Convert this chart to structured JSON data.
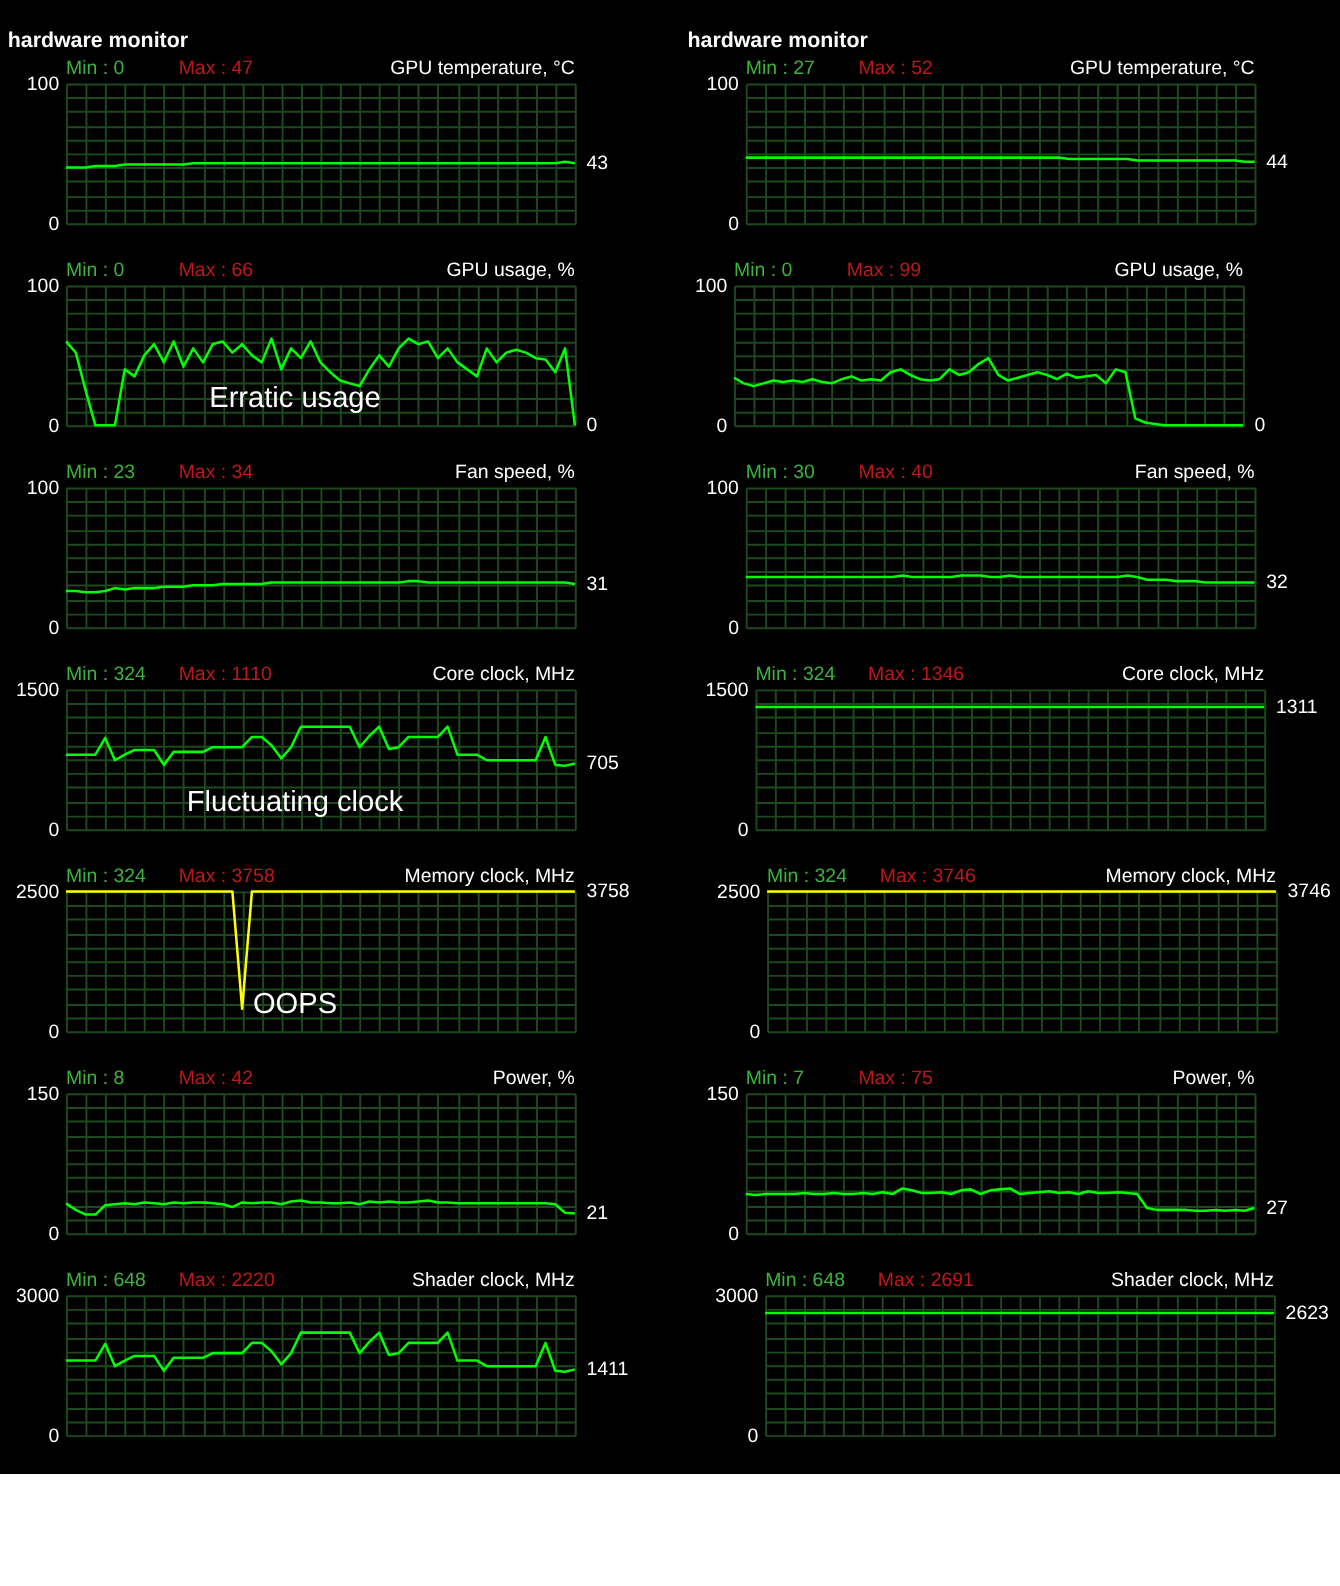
{
  "chart_data": [
    {
      "type": "line",
      "subtitle": "hardware monitor",
      "title": "GPU temperature, °C",
      "categories": [
        null,
        null,
        null,
        null,
        null,
        null,
        null,
        null,
        null,
        null,
        null,
        null,
        null,
        null,
        null,
        null,
        null,
        null,
        null,
        null,
        null,
        null,
        null,
        null,
        null,
        null,
        null,
        null,
        null,
        null,
        null,
        null,
        null,
        null,
        null,
        null,
        null,
        null,
        null,
        null,
        null,
        null,
        null,
        null,
        null,
        null,
        null,
        null,
        null,
        null,
        null,
        null,
        null
      ],
      "ylim": [
        0,
        100
      ],
      "yticks": [
        0,
        {
          "value": 10,
          "label": null
        },
        {
          "value": 20,
          "label": null
        },
        {
          "value": 30,
          "label": null
        },
        {
          "value": 40,
          "label": null
        },
        {
          "value": 50,
          "label": null
        },
        {
          "value": 60,
          "label": null
        },
        {
          "value": 70,
          "label": null
        },
        {
          "value": 80,
          "label": null
        },
        {
          "value": 90,
          "label": null
        },
        100
      ],
      "grid": true,
      "annotations": [
        "Min : 0",
        "Max : 47",
        "43"
      ],
      "series": [
        {
          "color": "#00ff00",
          "values": [
            40,
            40,
            40,
            41,
            41,
            41,
            42,
            42,
            42,
            42,
            42,
            42,
            42,
            43,
            43,
            43,
            43,
            43,
            43,
            43,
            43,
            43,
            43,
            43,
            43,
            43,
            43,
            43,
            43,
            43,
            43,
            43,
            43,
            43,
            43,
            43,
            43,
            43,
            43,
            43,
            43,
            43,
            43,
            43,
            43,
            43,
            43,
            43,
            43,
            43,
            43,
            44,
            43
          ]
        }
      ]
    },
    {
      "type": "line",
      "subtitle": "hardware monitor",
      "title": "GPU temperature, °C",
      "categories": [
        null,
        null,
        null,
        null,
        null,
        null,
        null,
        null,
        null,
        null,
        null,
        null,
        null,
        null,
        null,
        null,
        null,
        null,
        null,
        null,
        null,
        null,
        null,
        null,
        null,
        null,
        null,
        null,
        null,
        null,
        null,
        null,
        null,
        null,
        null,
        null,
        null,
        null,
        null,
        null,
        null,
        null,
        null,
        null,
        null,
        null,
        null,
        null,
        null,
        null,
        null,
        null,
        null
      ],
      "ylim": [
        0,
        100
      ],
      "yticks": [
        0,
        {
          "value": 10,
          "label": null
        },
        {
          "value": 20,
          "label": null
        },
        {
          "value": 30,
          "label": null
        },
        {
          "value": 40,
          "label": null
        },
        {
          "value": 50,
          "label": null
        },
        {
          "value": 60,
          "label": null
        },
        {
          "value": 70,
          "label": null
        },
        {
          "value": 80,
          "label": null
        },
        {
          "value": 90,
          "label": null
        },
        100
      ],
      "grid": true,
      "annotations": [
        "Min : 27",
        "Max : 52",
        "44"
      ],
      "series": [
        {
          "color": "#00ff00",
          "values": [
            47,
            47,
            47,
            47,
            47,
            47,
            47,
            47,
            47,
            47,
            47,
            47,
            47,
            47,
            47,
            47,
            47,
            47,
            47,
            47,
            47,
            47,
            47,
            47,
            47,
            47,
            47,
            47,
            47,
            47,
            47,
            47,
            47,
            46,
            46,
            46,
            46,
            46,
            46,
            46,
            45,
            45,
            45,
            45,
            45,
            45,
            45,
            45,
            45,
            45,
            45,
            44,
            44
          ]
        }
      ]
    },
    {
      "type": "line",
      "title": "GPU usage, %",
      "categories": [
        null,
        null,
        null,
        null,
        null,
        null,
        null,
        null,
        null,
        null,
        null,
        null,
        null,
        null,
        null,
        null,
        null,
        null,
        null,
        null,
        null,
        null,
        null,
        null,
        null,
        null,
        null,
        null,
        null,
        null,
        null,
        null,
        null,
        null,
        null,
        null,
        null,
        null,
        null,
        null,
        null,
        null,
        null,
        null,
        null,
        null,
        null,
        null,
        null,
        null,
        null,
        null,
        null
      ],
      "ylim": [
        0,
        100
      ],
      "yticks": [
        0,
        {
          "value": 10,
          "label": null
        },
        {
          "value": 20,
          "label": null
        },
        {
          "value": 30,
          "label": null
        },
        {
          "value": 40,
          "label": null
        },
        {
          "value": 50,
          "label": null
        },
        {
          "value": 60,
          "label": null
        },
        {
          "value": 70,
          "label": null
        },
        {
          "value": 80,
          "label": null
        },
        {
          "value": 90,
          "label": null
        },
        100
      ],
      "grid": true,
      "annotations": [
        "Min : 0",
        "Max : 66",
        "0",
        "Erratic usage"
      ],
      "series": [
        {
          "color": "#00ff00",
          "values": [
            60,
            52,
            25,
            0,
            0,
            0,
            40,
            35,
            50,
            58,
            45,
            60,
            42,
            55,
            45,
            58,
            60,
            52,
            58,
            50,
            45,
            62,
            40,
            55,
            48,
            60,
            45,
            38,
            32,
            30,
            28,
            40,
            50,
            42,
            55,
            62,
            58,
            60,
            48,
            55,
            45,
            40,
            35,
            55,
            45,
            52,
            54,
            52,
            48,
            47,
            38,
            55,
            0
          ]
        }
      ]
    },
    {
      "type": "line",
      "title": "GPU usage, %",
      "categories": [
        null,
        null,
        null,
        null,
        null,
        null,
        null,
        null,
        null,
        null,
        null,
        null,
        null,
        null,
        null,
        null,
        null,
        null,
        null,
        null,
        null,
        null,
        null,
        null,
        null,
        null,
        null,
        null,
        null,
        null,
        null,
        null,
        null,
        null,
        null,
        null,
        null,
        null,
        null,
        null,
        null,
        null,
        null,
        null,
        null,
        null,
        null,
        null,
        null,
        null,
        null,
        null,
        null
      ],
      "ylim": [
        0,
        100
      ],
      "yticks": [
        0,
        {
          "value": 10,
          "label": null
        },
        {
          "value": 20,
          "label": null
        },
        {
          "value": 30,
          "label": null
        },
        {
          "value": 40,
          "label": null
        },
        {
          "value": 50,
          "label": null
        },
        {
          "value": 60,
          "label": null
        },
        {
          "value": 70,
          "label": null
        },
        {
          "value": 80,
          "label": null
        },
        {
          "value": 90,
          "label": null
        },
        100
      ],
      "grid": true,
      "annotations": [
        "Min : 0",
        "Max : 99",
        "0"
      ],
      "series": [
        {
          "color": "#00ff00",
          "values": [
            34,
            30,
            28,
            30,
            32,
            31,
            32,
            31,
            33,
            31,
            30,
            33,
            35,
            32,
            33,
            32,
            38,
            40,
            36,
            33,
            32,
            33,
            40,
            36,
            38,
            44,
            48,
            36,
            32,
            34,
            36,
            38,
            36,
            33,
            37,
            34,
            35,
            36,
            30,
            40,
            38,
            5,
            2,
            1,
            0,
            0,
            0,
            0,
            0,
            0,
            0,
            0,
            0
          ]
        }
      ]
    },
    {
      "type": "line",
      "title": "Fan speed, %",
      "categories": [
        null,
        null,
        null,
        null,
        null,
        null,
        null,
        null,
        null,
        null,
        null,
        null,
        null,
        null,
        null,
        null,
        null,
        null,
        null,
        null,
        null,
        null,
        null,
        null,
        null,
        null,
        null,
        null,
        null,
        null,
        null,
        null,
        null,
        null,
        null,
        null,
        null,
        null,
        null,
        null,
        null,
        null,
        null,
        null,
        null,
        null,
        null,
        null,
        null,
        null,
        null,
        null,
        null
      ],
      "ylim": [
        0,
        100
      ],
      "yticks": [
        0,
        {
          "value": 10,
          "label": null
        },
        {
          "value": 20,
          "label": null
        },
        {
          "value": 30,
          "label": null
        },
        {
          "value": 40,
          "label": null
        },
        {
          "value": 50,
          "label": null
        },
        {
          "value": 60,
          "label": null
        },
        {
          "value": 70,
          "label": null
        },
        {
          "value": 80,
          "label": null
        },
        {
          "value": 90,
          "label": null
        },
        100
      ],
      "grid": true,
      "annotations": [
        "Min : 23",
        "Max : 34",
        "31"
      ],
      "series": [
        {
          "color": "#00ff00",
          "values": [
            26,
            26,
            25,
            25,
            26,
            28,
            27,
            28,
            28,
            28,
            29,
            29,
            29,
            30,
            30,
            30,
            31,
            31,
            31,
            31,
            31,
            32,
            32,
            32,
            32,
            32,
            32,
            32,
            32,
            32,
            32,
            32,
            32,
            32,
            32,
            33,
            33,
            32,
            32,
            32,
            32,
            32,
            32,
            32,
            32,
            32,
            32,
            32,
            32,
            32,
            32,
            32,
            31
          ]
        }
      ]
    },
    {
      "type": "line",
      "title": "Fan speed, %",
      "categories": [
        null,
        null,
        null,
        null,
        null,
        null,
        null,
        null,
        null,
        null,
        null,
        null,
        null,
        null,
        null,
        null,
        null,
        null,
        null,
        null,
        null,
        null,
        null,
        null,
        null,
        null,
        null,
        null,
        null,
        null,
        null,
        null,
        null,
        null,
        null,
        null,
        null,
        null,
        null,
        null,
        null,
        null,
        null,
        null,
        null,
        null,
        null,
        null,
        null,
        null,
        null,
        null,
        null
      ],
      "ylim": [
        0,
        100
      ],
      "yticks": [
        0,
        {
          "value": 10,
          "label": null
        },
        {
          "value": 20,
          "label": null
        },
        {
          "value": 30,
          "label": null
        },
        {
          "value": 40,
          "label": null
        },
        {
          "value": 50,
          "label": null
        },
        {
          "value": 60,
          "label": null
        },
        {
          "value": 70,
          "label": null
        },
        {
          "value": 80,
          "label": null
        },
        {
          "value": 90,
          "label": null
        },
        100
      ],
      "grid": true,
      "annotations": [
        "Min : 30",
        "Max : 40",
        "32"
      ],
      "series": [
        {
          "color": "#00ff00",
          "values": [
            36,
            36,
            36,
            36,
            36,
            36,
            36,
            36,
            36,
            36,
            36,
            36,
            36,
            36,
            36,
            36,
            37,
            36,
            36,
            36,
            36,
            36,
            37,
            37,
            37,
            36,
            36,
            37,
            36,
            36,
            36,
            36,
            36,
            36,
            36,
            36,
            36,
            36,
            36,
            37,
            36,
            34,
            34,
            34,
            33,
            33,
            33,
            32,
            32,
            32,
            32,
            32,
            32
          ]
        }
      ]
    },
    {
      "type": "line",
      "title": "Core clock, MHz",
      "categories": [
        null,
        null,
        null,
        null,
        null,
        null,
        null,
        null,
        null,
        null,
        null,
        null,
        null,
        null,
        null,
        null,
        null,
        null,
        null,
        null,
        null,
        null,
        null,
        null,
        null,
        null,
        null,
        null,
        null,
        null,
        null,
        null,
        null,
        null,
        null,
        null,
        null,
        null,
        null,
        null,
        null,
        null,
        null,
        null,
        null,
        null,
        null,
        null,
        null,
        null,
        null,
        null,
        null
      ],
      "ylim": [
        0,
        1500
      ],
      "yticks": [
        0,
        {
          "value": 150,
          "label": null
        },
        {
          "value": 300,
          "label": null
        },
        {
          "value": 450,
          "label": null
        },
        {
          "value": 600,
          "label": null
        },
        {
          "value": 750,
          "label": null
        },
        {
          "value": 900,
          "label": null
        },
        {
          "value": 1050,
          "label": null
        },
        {
          "value": 1200,
          "label": null
        },
        {
          "value": 1350,
          "label": null
        },
        1500
      ],
      "grid": true,
      "annotations": [
        "Min : 324",
        "Max : 1110",
        "705",
        "Fluctuating clock"
      ],
      "series": [
        {
          "color": "#00ff00",
          "values": [
            800,
            800,
            800,
            800,
            980,
            740,
            800,
            850,
            850,
            850,
            690,
            830,
            830,
            830,
            830,
            880,
            880,
            880,
            880,
            990,
            990,
            900,
            760,
            880,
            1100,
            1100,
            1100,
            1100,
            1100,
            1100,
            880,
            1000,
            1100,
            860,
            880,
            990,
            990,
            990,
            990,
            1100,
            800,
            800,
            800,
            740,
            740,
            740,
            740,
            740,
            740,
            990,
            690,
            680,
            705
          ]
        }
      ]
    },
    {
      "type": "line",
      "title": "Core clock, MHz",
      "categories": [
        null,
        null,
        null,
        null,
        null,
        null,
        null,
        null,
        null,
        null,
        null,
        null,
        null,
        null,
        null,
        null,
        null,
        null,
        null,
        null,
        null,
        null,
        null,
        null,
        null,
        null,
        null,
        null,
        null,
        null,
        null,
        null,
        null,
        null,
        null,
        null,
        null,
        null,
        null,
        null,
        null,
        null,
        null,
        null,
        null,
        null,
        null,
        null,
        null,
        null,
        null,
        null,
        null
      ],
      "ylim": [
        0,
        1500
      ],
      "yticks": [
        0,
        {
          "value": 150,
          "label": null
        },
        {
          "value": 300,
          "label": null
        },
        {
          "value": 450,
          "label": null
        },
        {
          "value": 600,
          "label": null
        },
        {
          "value": 750,
          "label": null
        },
        {
          "value": 900,
          "label": null
        },
        {
          "value": 1050,
          "label": null
        },
        {
          "value": 1200,
          "label": null
        },
        {
          "value": 1350,
          "label": null
        },
        1500
      ],
      "grid": true,
      "annotations": [
        "Min : 324",
        "Max : 1346",
        "1311"
      ],
      "series": [
        {
          "color": "#00ff00",
          "values": [
            1311,
            1311,
            1311,
            1311,
            1311,
            1311,
            1311,
            1311,
            1311,
            1311,
            1311,
            1311,
            1311,
            1311,
            1311,
            1311,
            1311,
            1311,
            1311,
            1311,
            1311,
            1311,
            1311,
            1311,
            1311,
            1311,
            1311,
            1311,
            1311,
            1311,
            1311,
            1311,
            1311,
            1311,
            1311,
            1311,
            1311,
            1311,
            1311,
            1311,
            1311,
            1311,
            1311,
            1311,
            1311,
            1311,
            1311,
            1311,
            1311,
            1311,
            1311,
            1311,
            1311
          ]
        }
      ]
    },
    {
      "type": "line",
      "title": "Memory clock, MHz",
      "categories": [
        null,
        null,
        null,
        null,
        null,
        null,
        null,
        null,
        null,
        null,
        null,
        null,
        null,
        null,
        null,
        null,
        null,
        null,
        null,
        null,
        null,
        null,
        null,
        null,
        null,
        null,
        null,
        null,
        null,
        null,
        null,
        null,
        null,
        null,
        null,
        null,
        null,
        null,
        null,
        null,
        null,
        null,
        null,
        null,
        null,
        null,
        null,
        null,
        null,
        null,
        null,
        null,
        null
      ],
      "ylim": [
        0,
        2500
      ],
      "yticks": [
        0,
        {
          "value": 250,
          "label": null
        },
        {
          "value": 500,
          "label": null
        },
        {
          "value": 750,
          "label": null
        },
        {
          "value": 1000,
          "label": null
        },
        {
          "value": 1250,
          "label": null
        },
        {
          "value": 1500,
          "label": null
        },
        {
          "value": 1750,
          "label": null
        },
        {
          "value": 2000,
          "label": null
        },
        {
          "value": 2250,
          "label": null
        },
        2500
      ],
      "grid": true,
      "annotations": [
        "Min : 324",
        "Max : 3758",
        "3758",
        "OOPS"
      ],
      "series": [
        {
          "color": "#ffff00",
          "values": [
            2500,
            2500,
            2500,
            2500,
            2500,
            2500,
            2500,
            2500,
            2500,
            2500,
            2500,
            2500,
            2500,
            2500,
            2500,
            2500,
            2500,
            2500,
            400,
            2500,
            2500,
            2500,
            2500,
            2500,
            2500,
            2500,
            2500,
            2500,
            2500,
            2500,
            2500,
            2500,
            2500,
            2500,
            2500,
            2500,
            2500,
            2500,
            2500,
            2500,
            2500,
            2500,
            2500,
            2500,
            2500,
            2500,
            2500,
            2500,
            2500,
            2500,
            2500,
            2500,
            2500
          ]
        }
      ]
    },
    {
      "type": "line",
      "title": "Memory clock, MHz",
      "categories": [
        null,
        null,
        null,
        null,
        null,
        null,
        null,
        null,
        null,
        null,
        null,
        null,
        null,
        null,
        null,
        null,
        null,
        null,
        null,
        null,
        null,
        null,
        null,
        null,
        null,
        null,
        null,
        null,
        null,
        null,
        null,
        null,
        null,
        null,
        null,
        null,
        null,
        null,
        null,
        null,
        null,
        null,
        null,
        null,
        null,
        null,
        null,
        null,
        null,
        null,
        null,
        null,
        null
      ],
      "ylim": [
        0,
        2500
      ],
      "yticks": [
        0,
        {
          "value": 250,
          "label": null
        },
        {
          "value": 500,
          "label": null
        },
        {
          "value": 750,
          "label": null
        },
        {
          "value": 1000,
          "label": null
        },
        {
          "value": 1250,
          "label": null
        },
        {
          "value": 1500,
          "label": null
        },
        {
          "value": 1750,
          "label": null
        },
        {
          "value": 2000,
          "label": null
        },
        {
          "value": 2250,
          "label": null
        },
        2500
      ],
      "grid": true,
      "annotations": [
        "Min : 324",
        "Max : 3746",
        "3746"
      ],
      "series": [
        {
          "color": "#ffff00",
          "values": [
            2500,
            2500,
            2500,
            2500,
            2500,
            2500,
            2500,
            2500,
            2500,
            2500,
            2500,
            2500,
            2500,
            2500,
            2500,
            2500,
            2500,
            2500,
            2500,
            2500,
            2500,
            2500,
            2500,
            2500,
            2500,
            2500,
            2500,
            2500,
            2500,
            2500,
            2500,
            2500,
            2500,
            2500,
            2500,
            2500,
            2500,
            2500,
            2500,
            2500,
            2500,
            2500,
            2500,
            2500,
            2500,
            2500,
            2500,
            2500,
            2500,
            2500,
            2500,
            2500,
            2500
          ]
        }
      ]
    },
    {
      "type": "line",
      "title": "Power, %",
      "categories": [
        null,
        null,
        null,
        null,
        null,
        null,
        null,
        null,
        null,
        null,
        null,
        null,
        null,
        null,
        null,
        null,
        null,
        null,
        null,
        null,
        null,
        null,
        null,
        null,
        null,
        null,
        null,
        null,
        null,
        null,
        null,
        null,
        null,
        null,
        null,
        null,
        null,
        null,
        null,
        null,
        null,
        null,
        null,
        null,
        null,
        null,
        null,
        null,
        null,
        null,
        null,
        null,
        null
      ],
      "ylim": [
        0,
        150
      ],
      "yticks": [
        0,
        {
          "value": 15,
          "label": null
        },
        {
          "value": 30,
          "label": null
        },
        {
          "value": 45,
          "label": null
        },
        {
          "value": 60,
          "label": null
        },
        {
          "value": 75,
          "label": null
        },
        {
          "value": 90,
          "label": null
        },
        {
          "value": 105,
          "label": null
        },
        {
          "value": 120,
          "label": null
        },
        {
          "value": 135,
          "label": null
        },
        150
      ],
      "grid": true,
      "annotations": [
        "Min : 8",
        "Max : 42",
        "21"
      ],
      "series": [
        {
          "color": "#00ff00",
          "values": [
            32,
            25,
            20,
            20,
            30,
            31,
            32,
            31,
            33,
            32,
            31,
            33,
            32,
            33,
            33,
            32,
            31,
            28,
            33,
            32,
            33,
            33,
            31,
            34,
            35,
            33,
            33,
            32,
            32,
            33,
            31,
            34,
            33,
            34,
            33,
            33,
            34,
            35,
            33,
            33,
            32,
            32,
            32,
            32,
            32,
            32,
            32,
            32,
            32,
            32,
            31,
            22,
            21
          ]
        }
      ]
    },
    {
      "type": "line",
      "title": "Power, %",
      "categories": [
        null,
        null,
        null,
        null,
        null,
        null,
        null,
        null,
        null,
        null,
        null,
        null,
        null,
        null,
        null,
        null,
        null,
        null,
        null,
        null,
        null,
        null,
        null,
        null,
        null,
        null,
        null,
        null,
        null,
        null,
        null,
        null,
        null,
        null,
        null,
        null,
        null,
        null,
        null,
        null,
        null,
        null,
        null,
        null,
        null,
        null,
        null,
        null,
        null,
        null,
        null,
        null,
        null
      ],
      "ylim": [
        0,
        150
      ],
      "yticks": [
        0,
        {
          "value": 15,
          "label": null
        },
        {
          "value": 30,
          "label": null
        },
        {
          "value": 45,
          "label": null
        },
        {
          "value": 60,
          "label": null
        },
        {
          "value": 75,
          "label": null
        },
        {
          "value": 90,
          "label": null
        },
        {
          "value": 105,
          "label": null
        },
        {
          "value": 120,
          "label": null
        },
        {
          "value": 135,
          "label": null
        },
        150
      ],
      "grid": true,
      "annotations": [
        "Min : 7",
        "Max : 75",
        "27"
      ],
      "series": [
        {
          "color": "#00ff00",
          "values": [
            42,
            41,
            42,
            42,
            42,
            42,
            43,
            42,
            42,
            43,
            42,
            42,
            43,
            42,
            44,
            42,
            48,
            46,
            43,
            43,
            44,
            42,
            46,
            47,
            42,
            46,
            47,
            48,
            42,
            43,
            44,
            45,
            43,
            44,
            42,
            45,
            43,
            43,
            44,
            43,
            42,
            27,
            25,
            25,
            25,
            25,
            24,
            24,
            25,
            24,
            25,
            24,
            27
          ]
        }
      ]
    },
    {
      "type": "line",
      "title": "Shader clock, MHz",
      "categories": [
        null,
        null,
        null,
        null,
        null,
        null,
        null,
        null,
        null,
        null,
        null,
        null,
        null,
        null,
        null,
        null,
        null,
        null,
        null,
        null,
        null,
        null,
        null,
        null,
        null,
        null,
        null,
        null,
        null,
        null,
        null,
        null,
        null,
        null,
        null,
        null,
        null,
        null,
        null,
        null,
        null,
        null,
        null,
        null,
        null,
        null,
        null,
        null,
        null,
        null,
        null,
        null,
        null
      ],
      "ylim": [
        0,
        3000
      ],
      "yticks": [
        0,
        {
          "value": 300,
          "label": null
        },
        {
          "value": 600,
          "label": null
        },
        {
          "value": 900,
          "label": null
        },
        {
          "value": 1200,
          "label": null
        },
        {
          "value": 1500,
          "label": null
        },
        {
          "value": 1800,
          "label": null
        },
        {
          "value": 2100,
          "label": null
        },
        {
          "value": 2400,
          "label": null
        },
        {
          "value": 2700,
          "label": null
        },
        3000
      ],
      "grid": true,
      "annotations": [
        "Min : 648",
        "Max : 2220",
        "1411"
      ],
      "series": [
        {
          "color": "#00ff00",
          "values": [
            1600,
            1600,
            1600,
            1600,
            1960,
            1480,
            1600,
            1700,
            1700,
            1700,
            1380,
            1660,
            1660,
            1660,
            1660,
            1760,
            1760,
            1760,
            1760,
            1980,
            1980,
            1800,
            1520,
            1760,
            2200,
            2200,
            2200,
            2200,
            2200,
            2200,
            1760,
            2000,
            2200,
            1720,
            1760,
            1980,
            1980,
            1980,
            1980,
            2200,
            1600,
            1600,
            1600,
            1480,
            1480,
            1480,
            1480,
            1480,
            1480,
            1980,
            1380,
            1360,
            1411
          ]
        }
      ]
    },
    {
      "type": "line",
      "title": "Shader clock, MHz",
      "categories": [
        null,
        null,
        null,
        null,
        null,
        null,
        null,
        null,
        null,
        null,
        null,
        null,
        null,
        null,
        null,
        null,
        null,
        null,
        null,
        null,
        null,
        null,
        null,
        null,
        null,
        null,
        null,
        null,
        null,
        null,
        null,
        null,
        null,
        null,
        null,
        null,
        null,
        null,
        null,
        null,
        null,
        null,
        null,
        null,
        null,
        null,
        null,
        null,
        null,
        null,
        null,
        null,
        null
      ],
      "ylim": [
        0,
        3000
      ],
      "yticks": [
        0,
        {
          "value": 300,
          "label": null
        },
        {
          "value": 600,
          "label": null
        },
        {
          "value": 900,
          "label": null
        },
        {
          "value": 1200,
          "label": null
        },
        {
          "value": 1500,
          "label": null
        },
        {
          "value": 1800,
          "label": null
        },
        {
          "value": 2100,
          "label": null
        },
        {
          "value": 2400,
          "label": null
        },
        {
          "value": 2700,
          "label": null
        },
        3000
      ],
      "grid": true,
      "annotations": [
        "Min : 648",
        "Max : 2691",
        "2623"
      ],
      "series": [
        {
          "color": "#00ff00",
          "values": [
            2623,
            2623,
            2623,
            2623,
            2623,
            2623,
            2623,
            2623,
            2623,
            2623,
            2623,
            2623,
            2623,
            2623,
            2623,
            2623,
            2623,
            2623,
            2623,
            2623,
            2623,
            2623,
            2623,
            2623,
            2623,
            2623,
            2623,
            2623,
            2623,
            2623,
            2623,
            2623,
            2623,
            2623,
            2623,
            2623,
            2623,
            2623,
            2623,
            2623,
            2623,
            2623,
            2623,
            2623,
            2623,
            2623,
            2623,
            2623,
            2623,
            2623,
            2623,
            2623,
            2623
          ]
        }
      ]
    }
  ]
}
